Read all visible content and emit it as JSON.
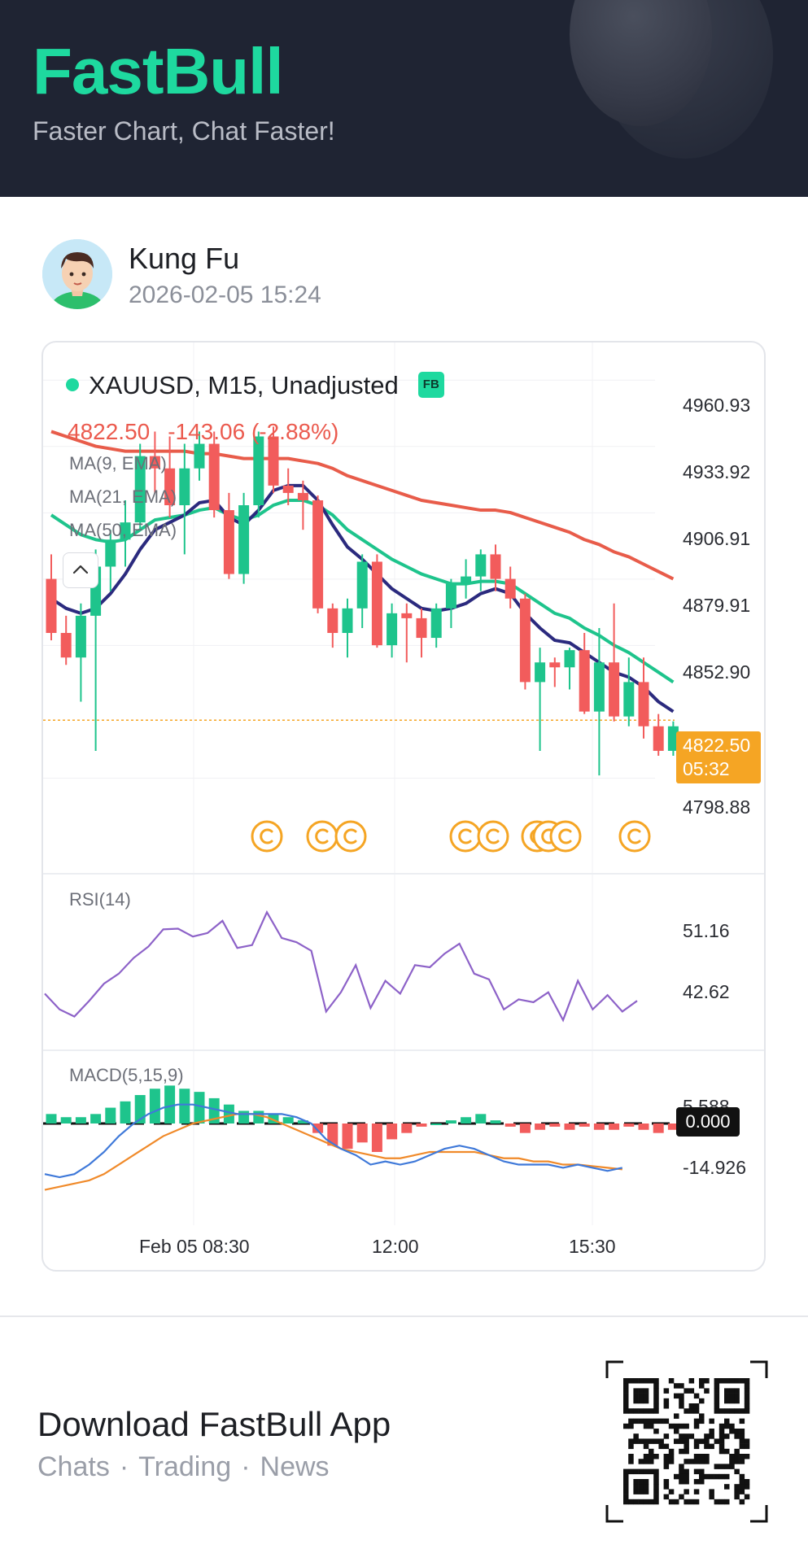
{
  "header": {
    "brand": "FastBull",
    "tagline": "Faster Chart, Chat Faster!"
  },
  "post": {
    "author": "Kung Fu",
    "datetime": "2026-02-05 15:24",
    "avatar_icon": "boy-avatar-icon"
  },
  "chart": {
    "symbol": "XAUUSD, M15, Unadjusted",
    "badge": "FB",
    "last_price": "4822.50",
    "change": "-143.06 (-2.88%)",
    "indicators": [
      "MA(9, EMA)",
      "MA(21, EMA)",
      "MA(50, EMA)"
    ],
    "rsi_label": "RSI(14)",
    "macd_label": "MACD(5,15,9)",
    "price_tag": "4822.50",
    "countdown": "05:32",
    "zero_tag": "0.000",
    "colors": {
      "up": "#1ec48c",
      "down": "#f25c5c",
      "ma9": "#2b2a7e",
      "ma21": "#1ec48c",
      "ma50": "#e85c4a",
      "rsi": "#8d62c8",
      "macd": "#3f79d9",
      "signal": "#f08a2a",
      "tag": "#f5a524",
      "coin": "#f5a524"
    }
  },
  "chart_data": {
    "type": "candlestick",
    "title": "XAUUSD, M15, Unadjusted",
    "y_ticks": [
      "4960.93",
      "4933.92",
      "4906.91",
      "4879.91",
      "4852.90",
      "4798.88"
    ],
    "ylim": [
      4785.47,
      4968.3
    ],
    "x_ticks": [
      "Feb 05 08:30",
      "12:00",
      "15:30"
    ],
    "candles": [
      [
        4880,
        4890,
        4855,
        4858
      ],
      [
        4858,
        4865,
        4845,
        4848
      ],
      [
        4848,
        4870,
        4830,
        4865
      ],
      [
        4865,
        4892,
        4810,
        4885
      ],
      [
        4885,
        4900,
        4875,
        4896
      ],
      [
        4896,
        4912,
        4885,
        4903
      ],
      [
        4903,
        4935,
        4900,
        4930
      ],
      [
        4930,
        4940,
        4915,
        4925
      ],
      [
        4925,
        4938,
        4905,
        4910
      ],
      [
        4910,
        4935,
        4890,
        4925
      ],
      [
        4925,
        4940,
        4920,
        4935
      ],
      [
        4935,
        4940,
        4905,
        4908
      ],
      [
        4908,
        4915,
        4880,
        4882
      ],
      [
        4882,
        4915,
        4878,
        4910
      ],
      [
        4910,
        4940,
        4905,
        4938
      ],
      [
        4938,
        4942,
        4915,
        4918
      ],
      [
        4918,
        4925,
        4910,
        4915
      ],
      [
        4915,
        4920,
        4900,
        4912
      ],
      [
        4912,
        4914,
        4866,
        4868
      ],
      [
        4868,
        4870,
        4852,
        4858
      ],
      [
        4858,
        4872,
        4848,
        4868
      ],
      [
        4868,
        4890,
        4860,
        4887
      ],
      [
        4887,
        4890,
        4852,
        4853
      ],
      [
        4853,
        4870,
        4848,
        4866
      ],
      [
        4866,
        4870,
        4846,
        4864
      ],
      [
        4864,
        4868,
        4848,
        4856
      ],
      [
        4856,
        4870,
        4852,
        4868
      ],
      [
        4868,
        4880,
        4860,
        4878
      ],
      [
        4878,
        4888,
        4872,
        4881
      ],
      [
        4881,
        4892,
        4875,
        4890
      ],
      [
        4890,
        4894,
        4875,
        4880
      ],
      [
        4880,
        4885,
        4868,
        4872
      ],
      [
        4872,
        4874,
        4835,
        4838
      ],
      [
        4838,
        4852,
        4810,
        4846
      ],
      [
        4846,
        4848,
        4836,
        4844
      ],
      [
        4844,
        4852,
        4835,
        4851
      ],
      [
        4851,
        4858,
        4825,
        4826
      ],
      [
        4826,
        4860,
        4800,
        4846
      ],
      [
        4846,
        4870,
        4822,
        4824
      ],
      [
        4824,
        4848,
        4820,
        4838
      ],
      [
        4838,
        4848,
        4815,
        4820
      ],
      [
        4820,
        4825,
        4808,
        4810
      ],
      [
        4810,
        4822,
        4808,
        4820
      ]
    ],
    "ma9": [
      4872,
      4868,
      4866,
      4868,
      4874,
      4882,
      4892,
      4900,
      4903,
      4906,
      4911,
      4912,
      4905,
      4902,
      4908,
      4916,
      4918,
      4918,
      4912,
      4902,
      4893,
      4888,
      4882,
      4876,
      4872,
      4868,
      4867,
      4868,
      4870,
      4874,
      4876,
      4874,
      4866,
      4860,
      4855,
      4854,
      4850,
      4846,
      4842,
      4840,
      4836,
      4830,
      4826
    ],
    "ma21": [
      4906,
      4902,
      4898,
      4896,
      4895,
      4896,
      4900,
      4904,
      4905,
      4906,
      4908,
      4909,
      4906,
      4904,
      4906,
      4910,
      4912,
      4912,
      4910,
      4906,
      4900,
      4896,
      4892,
      4888,
      4885,
      4882,
      4880,
      4878,
      4878,
      4879,
      4879,
      4878,
      4874,
      4870,
      4866,
      4864,
      4860,
      4857,
      4853,
      4850,
      4846,
      4842,
      4838
    ],
    "ma50": [
      4940,
      4938,
      4936,
      4934,
      4933,
      4932,
      4932,
      4932,
      4932,
      4932,
      4931,
      4931,
      4930,
      4929,
      4929,
      4929,
      4929,
      4928,
      4927,
      4925,
      4922,
      4920,
      4918,
      4916,
      4914,
      4912,
      4911,
      4910,
      4909,
      4908,
      4908,
      4907,
      4905,
      4903,
      4901,
      4899,
      4896,
      4894,
      4891,
      4889,
      4886,
      4883,
      4880
    ],
    "markers_count": 9,
    "rsi": {
      "label": "RSI(14)",
      "ticks": [
        "51.16",
        "42.62"
      ],
      "values": [
        42.8,
        40.6,
        39.6,
        41.8,
        44.2,
        45.6,
        47.8,
        49.4,
        51.8,
        51.9,
        50.8,
        51.3,
        53.0,
        49.2,
        49.6,
        54.2,
        50.6,
        50.0,
        48.8,
        40.3,
        43.0,
        46.8,
        40.8,
        44.6,
        42.8,
        46.8,
        46.5,
        48.4,
        49.8,
        45.6,
        44.8,
        40.6,
        42.0,
        41.6,
        43.0,
        39.1,
        44.6,
        40.6,
        42.6,
        40.3,
        41.8
      ]
    },
    "macd": {
      "label": "MACD(5,15,9)",
      "ticks": [
        "5.588",
        "-14.926"
      ],
      "zero": "0.000",
      "histogram": [
        3,
        2,
        2,
        3,
        5,
        7,
        9,
        11,
        12,
        11,
        10,
        8,
        6,
        4,
        4,
        3,
        2,
        1,
        -3,
        -7,
        -8,
        -6,
        -9,
        -5,
        -3,
        -1,
        0,
        1,
        2,
        3,
        1,
        -1,
        -3,
        -2,
        -1,
        -2,
        -1,
        -2,
        -2,
        -1,
        -2,
        -3,
        -2
      ],
      "macd_line": [
        -16,
        -17,
        -16,
        -13,
        -9,
        -4,
        0,
        3,
        5,
        6,
        6,
        5,
        4,
        3,
        3,
        3,
        3,
        2,
        0,
        -5,
        -8,
        -10,
        -13,
        -12,
        -13,
        -12,
        -10,
        -8,
        -7,
        -8,
        -10,
        -12,
        -13,
        -13,
        -13,
        -14,
        -13,
        -14,
        -15,
        -14
      ],
      "signal_line": [
        -21,
        -20,
        -19,
        -18,
        -16,
        -13,
        -10,
        -7,
        -4,
        -2,
        0,
        1,
        2,
        3,
        3,
        2,
        0,
        -2,
        -4,
        -6,
        -8,
        -9,
        -10,
        -11,
        -11,
        -10,
        -9,
        -9,
        -9,
        -9,
        -10,
        -11,
        -11,
        -12,
        -12,
        -13,
        -13,
        -13.5,
        -14,
        -14.5
      ]
    }
  },
  "footer": {
    "title": "Download FastBull App",
    "links": [
      "Chats",
      "Trading",
      "News"
    ],
    "separator": "·"
  }
}
